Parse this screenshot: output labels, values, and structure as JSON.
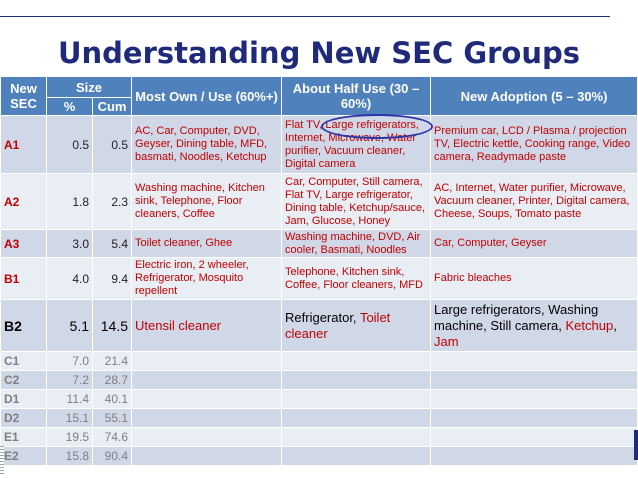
{
  "title": "Understanding New SEC Groups",
  "headers": {
    "new_sec": "New SEC",
    "size": "Size",
    "pct": "%",
    "cum": "Cum",
    "most_own": "Most Own / Use (60%+)",
    "about_half": "About Half Use (30 – 60%)",
    "new_adoption": "New Adoption (5 – 30%)"
  },
  "rows": [
    {
      "sec": "A1",
      "pct": "0.5",
      "cum": "0.5",
      "most": "AC, Car, Computer, DVD, Geyser, Dining table, MFD, basmati, Noodles, Ketchup",
      "half": "Flat TV, Large refrigerators, Internet, Microwave, Water purifier, Vacuum cleaner, Digital camera",
      "adopt": "Premium car, LCD / Plasma / projection TV, Electric kettle, Cooking range, Video camera, Readymade paste"
    },
    {
      "sec": "A2",
      "pct": "1.8",
      "cum": "2.3",
      "most": "Washing machine, Kitchen sink, Telephone, Floor cleaners, Coffee",
      "half": "Car, Computer, Still camera, Flat TV, Large refrigerator, Dining table, Ketchup/sauce, Jam, Glucose, Honey",
      "adopt": "AC, Internet, Water purifier, Microwave, Vacuum cleaner, Printer, Digital camera, Cheese, Soups, Tomato paste"
    },
    {
      "sec": "A3",
      "pct": "3.0",
      "cum": "5.4",
      "most": "Toilet cleaner, Ghee",
      "half": "Washing machine, DVD, Air cooler, Basmati, Noodles",
      "adopt": "Car, Computer, Geyser"
    },
    {
      "sec": "B1",
      "pct": "4.0",
      "cum": "9.4",
      "most": "Electric iron, 2 wheeler, Refrigerator, Mosquito repellent",
      "half": "Telephone, Kitchen sink, Coffee, Floor cleaners,  MFD",
      "adopt": "Fabric bleaches"
    },
    {
      "sec": "B2",
      "pct": "5.1",
      "cum": "14.5",
      "most": "Utensil cleaner",
      "half_black": "Refrigerator, ",
      "half_red": "Toilet cleaner",
      "adopt_black": "Large refrigerators, Washing machine, Still camera, ",
      "adopt_red1": "Ketchup",
      "adopt_sep": ", ",
      "adopt_red2": "Jam"
    },
    {
      "sec": "C1",
      "pct": "7.0",
      "cum": "21.4"
    },
    {
      "sec": "C2",
      "pct": "7.2",
      "cum": "28.7"
    },
    {
      "sec": "D1",
      "pct": "11.4",
      "cum": "40.1"
    },
    {
      "sec": "D2",
      "pct": "15.1",
      "cum": "55.1"
    },
    {
      "sec": "E1",
      "pct": "19.5",
      "cum": "74.6"
    },
    {
      "sec": "E2",
      "pct": "15.8",
      "cum": "90.4"
    }
  ],
  "colors": {
    "title": "#1f2a7a",
    "header_bg": "#4f81bd",
    "row_dark": "#d0d8e8",
    "row_light": "#e9edf4",
    "highlight_text": "#c00000",
    "highlight_ellipse": "#2b35a8"
  }
}
